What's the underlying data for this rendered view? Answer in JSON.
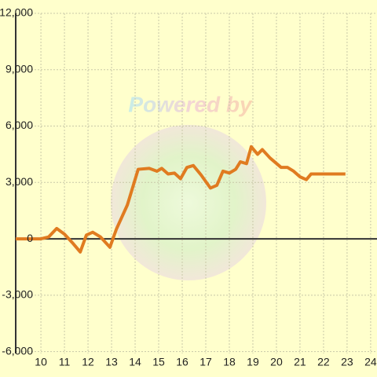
{
  "chart_data": {
    "type": "line",
    "watermark": "Powered by",
    "x": [
      8.93,
      10,
      10.33,
      10.67,
      11,
      11.33,
      11.67,
      11.93,
      12.2,
      12.53,
      12.93,
      13.2,
      13.67,
      14.13,
      14.6,
      14.93,
      15.13,
      15.4,
      15.67,
      15.93,
      16.2,
      16.47,
      16.8,
      17.2,
      17.47,
      17.73,
      18,
      18.27,
      18.47,
      18.73,
      18.93,
      19.2,
      19.4,
      19.73,
      20.2,
      20.47,
      20.73,
      21,
      21.27,
      21.47,
      22.93
    ],
    "series": [
      {
        "color": "#e07b20",
        "values": [
          0,
          0,
          100,
          550,
          250,
          -200,
          -700,
          200,
          350,
          100,
          -450,
          500,
          1800,
          3700,
          3750,
          3600,
          3750,
          3450,
          3500,
          3200,
          3800,
          3900,
          3400,
          2700,
          2850,
          3600,
          3500,
          3700,
          4100,
          4000,
          4900,
          4500,
          4750,
          4300,
          3800,
          3800,
          3600,
          3300,
          3150,
          3450,
          3450
        ]
      }
    ],
    "xlim": [
      8.93,
      24.27
    ],
    "ylim": [
      -6100,
      12000
    ],
    "xticks": [
      10,
      11,
      12,
      13,
      14,
      15,
      16,
      17,
      18,
      19,
      20,
      21,
      22,
      23,
      24
    ],
    "yticks": [
      {
        "value": -6000,
        "label": "-6,000"
      },
      {
        "value": -3000,
        "label": "-3,000"
      },
      0,
      {
        "value": 3000,
        "label": "3,000"
      },
      {
        "value": 6000,
        "label": "6,000"
      },
      {
        "value": 9000,
        "label": "9,000"
      },
      {
        "value": 12000,
        "label": "12,000"
      }
    ],
    "grid": true
  }
}
